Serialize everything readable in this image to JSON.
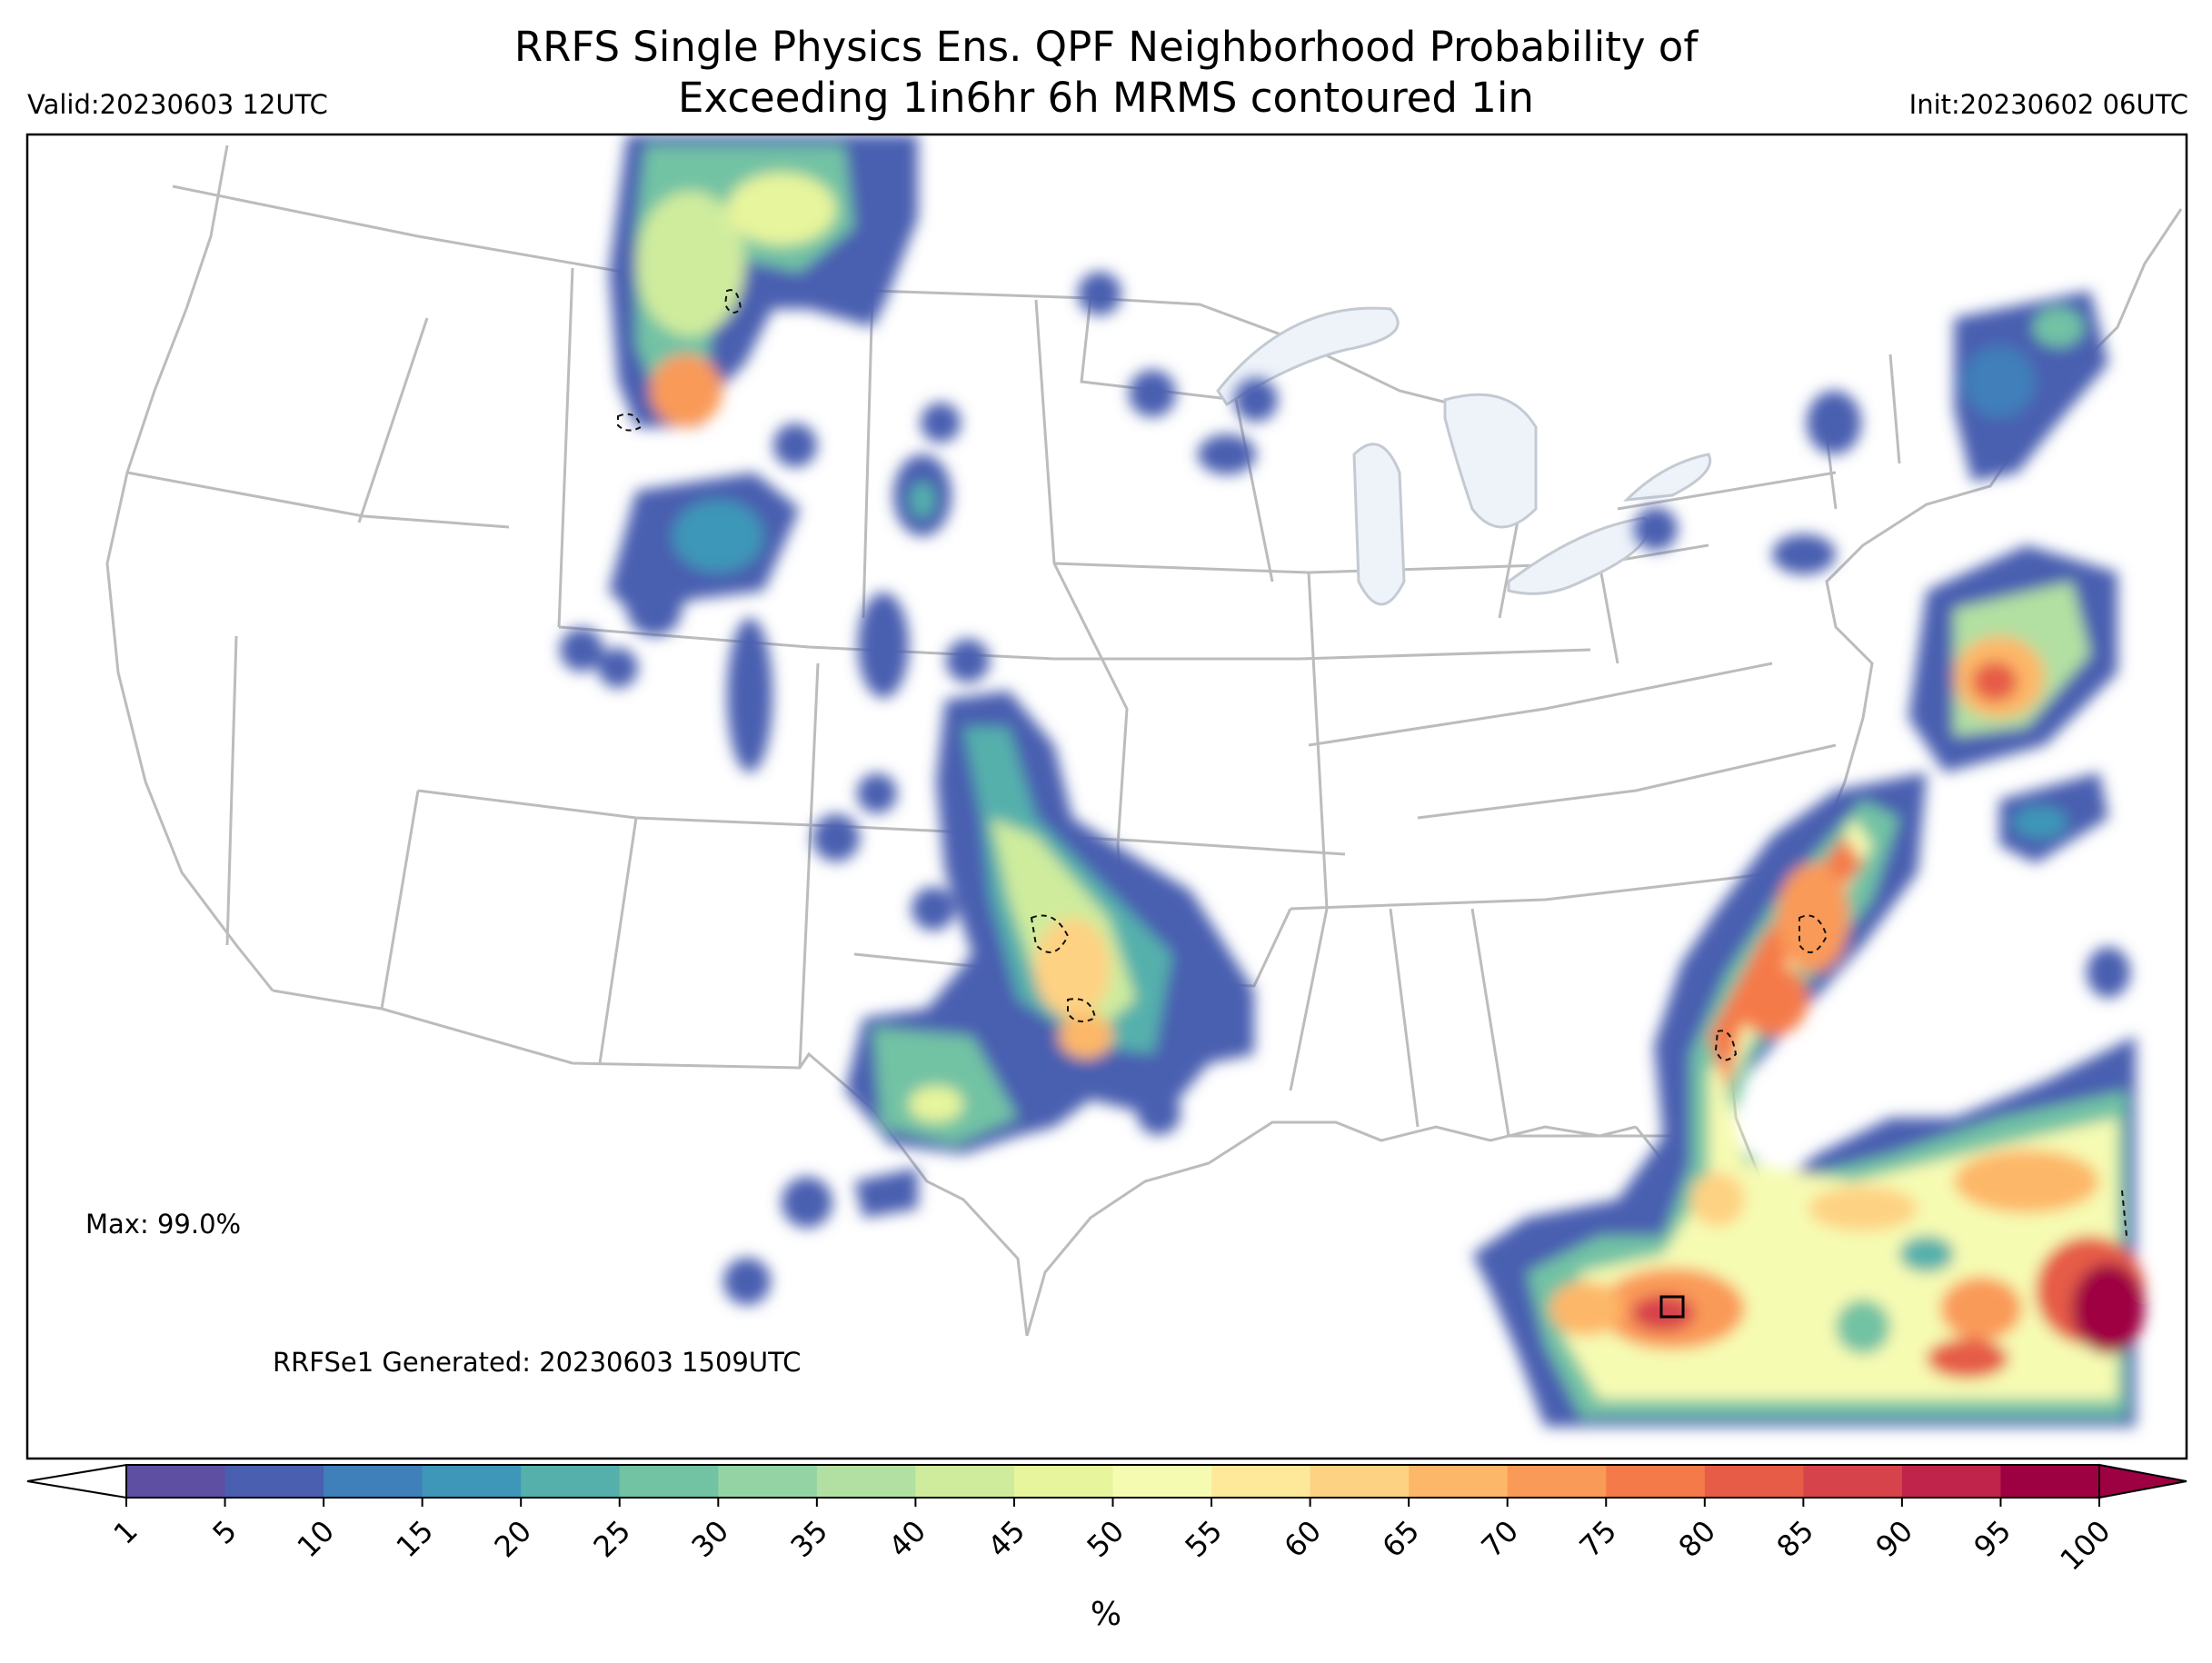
{
  "header": {
    "title_line_1": "RRFS Single Physics Ens. QPF Neighborhood Probability of",
    "title_line_2": "Exceeding 1in6hr 6h MRMS contoured 1in",
    "valid": "Valid:20230603 12UTC",
    "init": "Init:20230602 06UTC"
  },
  "map": {
    "max_text": "Max: 99.0%",
    "generated_text": "RRFSe1 Generated: 20230603 1509UTC",
    "lake_color": "#eef3fa",
    "border_color": "#b9b9b9"
  },
  "colorbar": {
    "unit": "%",
    "ticks": [
      "1",
      "5",
      "10",
      "15",
      "20",
      "25",
      "30",
      "35",
      "40",
      "45",
      "50",
      "55",
      "60",
      "65",
      "70",
      "75",
      "80",
      "85",
      "90",
      "95",
      "100"
    ],
    "colors": [
      "#5e4fa2",
      "#4a5fb0",
      "#3f7fba",
      "#3e97b8",
      "#55b0ac",
      "#72c2a4",
      "#94d4a4",
      "#b2e0a2",
      "#cfec9d",
      "#e7f59c",
      "#f6fbb2",
      "#fee89a",
      "#fed283",
      "#fdb768",
      "#fa9a58",
      "#f57a4a",
      "#e65c47",
      "#d7434b",
      "#c0244a",
      "#9e0142"
    ]
  }
}
